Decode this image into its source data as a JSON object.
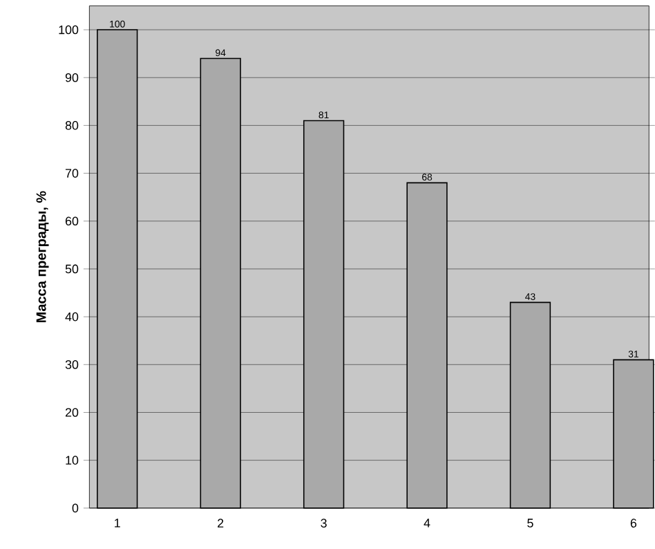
{
  "chart_data": {
    "type": "bar",
    "ylabel": "Масса преграды, %",
    "categories": [
      "1",
      "2",
      "3",
      "4",
      "5",
      "6"
    ],
    "values": [
      100,
      94,
      81,
      68,
      43,
      31
    ],
    "color": "#a9a9a9",
    "ylim": [
      0,
      105
    ],
    "yticks": [
      0,
      10,
      20,
      30,
      40,
      50,
      60,
      70,
      80,
      90,
      100
    ],
    "grid": "y",
    "data_labels": true
  }
}
